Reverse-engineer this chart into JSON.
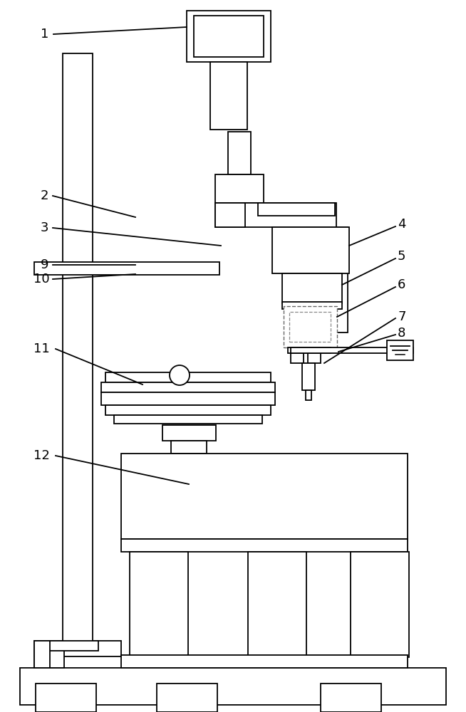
{
  "bg_color": "#ffffff",
  "line_color": "#000000",
  "lw": 1.3,
  "fig_width": 6.54,
  "fig_height": 10.0
}
